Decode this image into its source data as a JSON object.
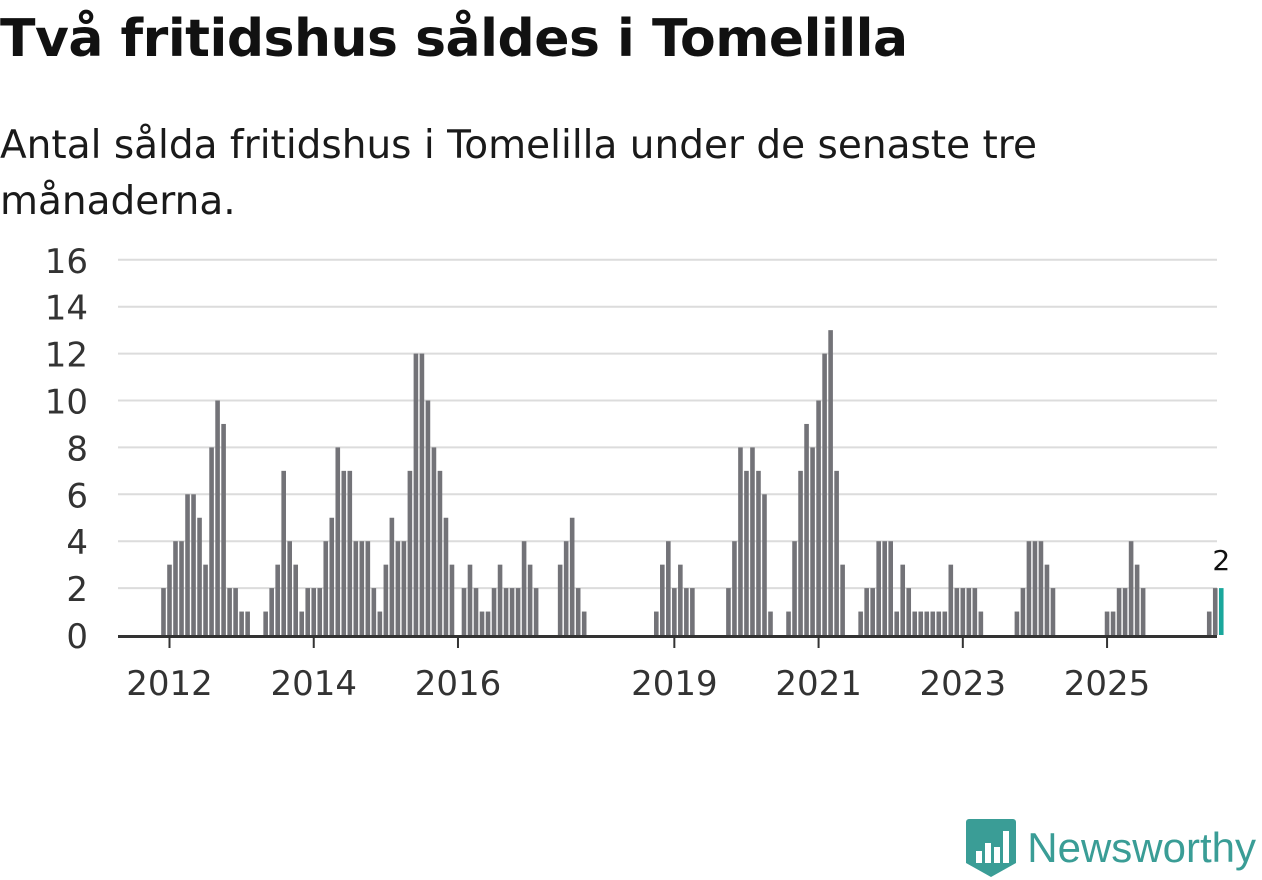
{
  "title": "Två fritidshus såldes i Tomelilla",
  "subtitle": "Antal sålda fritidshus i Tomelilla under de senaste tre månaderna.",
  "brand": {
    "name": "Newsworthy",
    "color": "#3a9d96",
    "logo_icon": "bar-chart-badge-icon"
  },
  "colors": {
    "bar": "#737378",
    "highlight": "#1aa79c",
    "grid": "#dcdcdc",
    "axis": "#333333"
  },
  "chart_data": {
    "type": "bar",
    "title": "Två fritidshus såldes i Tomelilla",
    "ylabel": "",
    "xlabel": "",
    "ylim": [
      0,
      16
    ],
    "yticks": [
      0,
      2,
      4,
      6,
      8,
      10,
      12,
      14,
      16
    ],
    "x_start": "2011-01",
    "x_tick_labels": [
      {
        "label": "2012",
        "month_index": 12
      },
      {
        "label": "2014",
        "month_index": 36
      },
      {
        "label": "2016",
        "month_index": 60
      },
      {
        "label": "2019",
        "month_index": 96
      },
      {
        "label": "2021",
        "month_index": 120
      },
      {
        "label": "2023",
        "month_index": 144
      },
      {
        "label": "2025",
        "month_index": 168
      }
    ],
    "values": [
      null,
      null,
      null,
      null,
      null,
      null,
      null,
      null,
      null,
      null,
      null,
      2,
      3,
      4,
      4,
      6,
      6,
      5,
      3,
      8,
      10,
      9,
      2,
      2,
      1,
      1,
      null,
      null,
      1,
      2,
      3,
      7,
      4,
      3,
      1,
      2,
      2,
      2,
      4,
      5,
      8,
      7,
      7,
      4,
      4,
      4,
      2,
      1,
      3,
      5,
      4,
      4,
      7,
      12,
      12,
      10,
      8,
      7,
      5,
      3,
      null,
      2,
      3,
      2,
      1,
      1,
      2,
      3,
      2,
      2,
      2,
      4,
      3,
      2,
      null,
      null,
      null,
      3,
      4,
      5,
      2,
      1,
      null,
      null,
      null,
      null,
      null,
      null,
      null,
      null,
      null,
      null,
      null,
      1,
      3,
      4,
      2,
      3,
      2,
      2,
      null,
      null,
      null,
      null,
      null,
      2,
      4,
      8,
      7,
      8,
      7,
      6,
      1,
      null,
      null,
      1,
      4,
      7,
      9,
      8,
      10,
      12,
      13,
      7,
      3,
      null,
      null,
      1,
      2,
      2,
      4,
      4,
      4,
      1,
      3,
      2,
      1,
      1,
      1,
      1,
      1,
      1,
      3,
      2,
      2,
      2,
      2,
      1,
      null,
      null,
      null,
      null,
      null,
      1,
      2,
      4,
      4,
      4,
      3,
      2,
      null,
      null,
      null,
      null,
      null,
      null,
      null,
      null,
      1,
      1,
      2,
      2,
      4,
      3,
      2,
      null,
      null,
      null,
      null,
      null,
      null,
      null,
      null,
      null,
      null,
      1,
      2,
      2
    ],
    "highlight_index": 187,
    "highlight_label": "2"
  }
}
